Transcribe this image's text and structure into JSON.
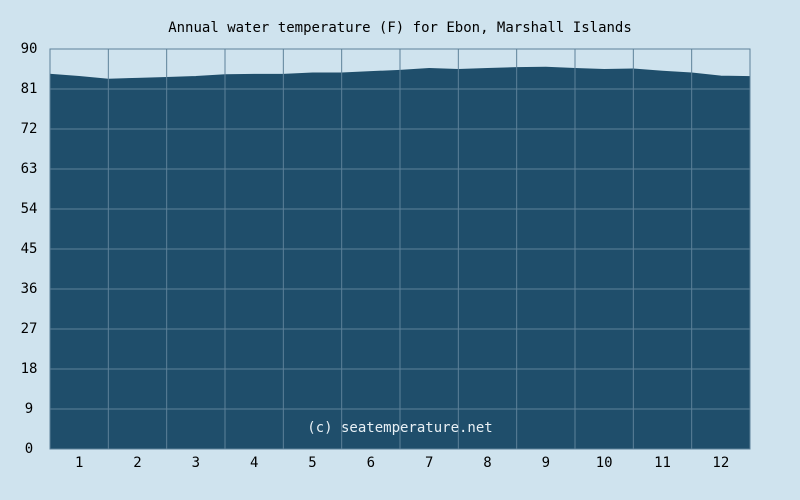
{
  "chart_data": {
    "type": "area",
    "title": "Annual water temperature (F) for Ebon, Marshall Islands",
    "annotation": "(c) seatemperature.net",
    "x": [
      0.5,
      1,
      1.5,
      2,
      2.5,
      3,
      3.5,
      4,
      4.5,
      5,
      5.5,
      6,
      6.5,
      7,
      7.5,
      8,
      8.5,
      9,
      9.5,
      10,
      10.5,
      11,
      11.5,
      12,
      12.5
    ],
    "values": [
      84.3,
      83.8,
      83.2,
      83.4,
      83.6,
      83.8,
      84.2,
      84.3,
      84.3,
      84.6,
      84.6,
      84.9,
      85.2,
      85.6,
      85.4,
      85.6,
      85.8,
      85.9,
      85.6,
      85.4,
      85.5,
      85.0,
      84.6,
      83.9,
      83.8
    ],
    "color": "#1f4e6b",
    "xlim": [
      0.5,
      12.5
    ],
    "xticks": [
      1,
      2,
      3,
      4,
      5,
      6,
      7,
      8,
      9,
      10,
      11,
      12
    ],
    "ylim": [
      0,
      90
    ],
    "yticks": [
      0,
      9,
      18,
      27,
      36,
      45,
      54,
      63,
      72,
      81,
      90
    ],
    "grid": true
  }
}
